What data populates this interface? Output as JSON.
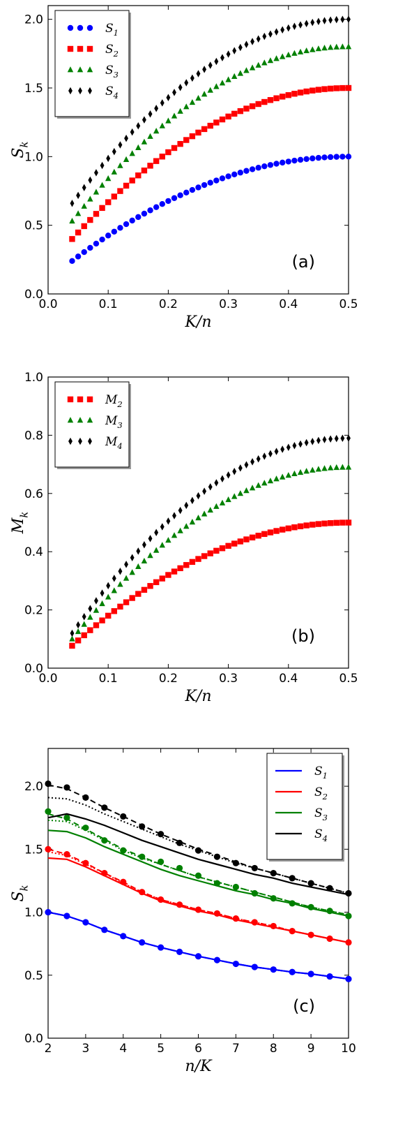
{
  "chart_data": [
    {
      "type": "scatter",
      "panel_label": "(a)",
      "xlabel": "K/n",
      "ylabel": "S_k",
      "ylabel_base": "S",
      "ylabel_sub": "k",
      "xlim": [
        0.0,
        0.5
      ],
      "ylim": [
        0.0,
        2.1
      ],
      "xticks": [
        "0.0",
        "0.1",
        "0.2",
        "0.3",
        "0.4",
        "0.5"
      ],
      "yticks": [
        "0.0",
        "0.5",
        "1.0",
        "1.5",
        "2.0"
      ],
      "legend": "top-left",
      "series": [
        {
          "name": "S_1",
          "name_base": "S",
          "name_sub": "1",
          "marker": "circle",
          "color": "#0000ff",
          "y_start": 0.24,
          "y_end": 1.0
        },
        {
          "name": "S_2",
          "name_base": "S",
          "name_sub": "2",
          "marker": "square",
          "color": "#ff0000",
          "y_start": 0.4,
          "y_end": 1.5
        },
        {
          "name": "S_3",
          "name_base": "S",
          "name_sub": "3",
          "marker": "triangle",
          "color": "#008000",
          "y_start": 0.53,
          "y_end": 1.8
        },
        {
          "name": "S_4",
          "name_base": "S",
          "name_sub": "4",
          "marker": "diamond",
          "color": "#000000",
          "y_start": 0.66,
          "y_end": 2.0
        }
      ],
      "x_start": 0.04,
      "x_end": 0.5,
      "n_points": 47
    },
    {
      "type": "scatter",
      "panel_label": "(b)",
      "xlabel": "K/n",
      "ylabel": "M_k",
      "ylabel_base": "M",
      "ylabel_sub": "k",
      "xlim": [
        0.0,
        0.5
      ],
      "ylim": [
        0.0,
        1.0
      ],
      "xticks": [
        "0.0",
        "0.1",
        "0.2",
        "0.3",
        "0.4",
        "0.5"
      ],
      "yticks": [
        "0.0",
        "0.2",
        "0.4",
        "0.6",
        "0.8",
        "1.0"
      ],
      "legend": "top-left",
      "series": [
        {
          "name": "M_2",
          "name_base": "M",
          "name_sub": "2",
          "marker": "square",
          "color": "#ff0000",
          "y_start": 0.077,
          "y_end": 0.5
        },
        {
          "name": "M_3",
          "name_base": "M",
          "name_sub": "3",
          "marker": "triangle",
          "color": "#008000",
          "y_start": 0.1,
          "y_end": 0.69
        },
        {
          "name": "M_4",
          "name_base": "M",
          "name_sub": "4",
          "marker": "diamond",
          "color": "#000000",
          "y_start": 0.12,
          "y_end": 0.79
        }
      ],
      "x_start": 0.04,
      "x_end": 0.5,
      "n_points": 47
    },
    {
      "type": "line",
      "panel_label": "(c)",
      "xlabel": "n/K",
      "ylabel": "S_k",
      "ylabel_base": "S",
      "ylabel_sub": "k",
      "xlim": [
        2,
        10
      ],
      "ylim": [
        0.0,
        2.3
      ],
      "xticks": [
        "2",
        "3",
        "4",
        "5",
        "6",
        "7",
        "8",
        "9",
        "10"
      ],
      "yticks": [
        "0.0",
        "0.5",
        "1.0",
        "1.5",
        "2.0"
      ],
      "legend": "top-right",
      "x_points": [
        2,
        2.5,
        3,
        3.5,
        4,
        4.5,
        5,
        5.5,
        6,
        6.5,
        7,
        7.5,
        8,
        8.5,
        9,
        9.5,
        10
      ],
      "series": [
        {
          "name": "S_1",
          "name_base": "S",
          "name_sub": "1",
          "color": "#0000ff",
          "points": [
            1.0,
            0.97,
            0.92,
            0.86,
            0.81,
            0.76,
            0.72,
            0.685,
            0.65,
            0.62,
            0.59,
            0.565,
            0.545,
            0.525,
            0.51,
            0.49,
            0.47
          ],
          "solid": [
            1.0,
            0.97,
            0.92,
            0.86,
            0.81,
            0.76,
            0.72,
            0.685,
            0.65,
            0.62,
            0.59,
            0.565,
            0.545,
            0.525,
            0.51,
            0.49,
            0.47
          ],
          "dashed": [
            1.0,
            0.97,
            0.92,
            0.86,
            0.81,
            0.76,
            0.72,
            0.685,
            0.65,
            0.62,
            0.59,
            0.565,
            0.545,
            0.525,
            0.51,
            0.49,
            0.47
          ],
          "dotted": [
            1.0,
            0.97,
            0.92,
            0.86,
            0.81,
            0.76,
            0.72,
            0.685,
            0.65,
            0.62,
            0.59,
            0.565,
            0.545,
            0.525,
            0.51,
            0.49,
            0.47
          ]
        },
        {
          "name": "S_2",
          "name_base": "S",
          "name_sub": "2",
          "color": "#ff0000",
          "points": [
            1.5,
            1.46,
            1.39,
            1.31,
            1.24,
            1.16,
            1.1,
            1.06,
            1.02,
            0.99,
            0.95,
            0.92,
            0.89,
            0.85,
            0.82,
            0.79,
            0.76
          ],
          "solid": [
            1.43,
            1.42,
            1.36,
            1.29,
            1.22,
            1.15,
            1.09,
            1.05,
            1.01,
            0.98,
            0.94,
            0.91,
            0.88,
            0.85,
            0.82,
            0.79,
            0.76
          ],
          "dashed": [
            1.5,
            1.46,
            1.39,
            1.31,
            1.24,
            1.16,
            1.1,
            1.06,
            1.02,
            0.99,
            0.95,
            0.92,
            0.89,
            0.85,
            0.82,
            0.79,
            0.76
          ],
          "dotted": [
            1.48,
            1.45,
            1.38,
            1.31,
            1.23,
            1.16,
            1.1,
            1.06,
            1.02,
            0.99,
            0.95,
            0.92,
            0.89,
            0.85,
            0.82,
            0.79,
            0.76
          ]
        },
        {
          "name": "S_3",
          "name_base": "S",
          "name_sub": "3",
          "color": "#008000",
          "points": [
            1.8,
            1.75,
            1.67,
            1.57,
            1.49,
            1.44,
            1.4,
            1.35,
            1.29,
            1.23,
            1.2,
            1.15,
            1.11,
            1.07,
            1.04,
            1.01,
            0.97
          ],
          "solid": [
            1.65,
            1.64,
            1.59,
            1.52,
            1.46,
            1.4,
            1.34,
            1.29,
            1.25,
            1.21,
            1.17,
            1.14,
            1.1,
            1.07,
            1.03,
            1.0,
            0.97
          ],
          "dashed": [
            1.78,
            1.74,
            1.66,
            1.58,
            1.5,
            1.44,
            1.38,
            1.33,
            1.28,
            1.24,
            1.2,
            1.16,
            1.12,
            1.08,
            1.04,
            1.01,
            0.98
          ],
          "dotted": [
            1.73,
            1.72,
            1.65,
            1.57,
            1.49,
            1.43,
            1.38,
            1.33,
            1.28,
            1.24,
            1.2,
            1.16,
            1.12,
            1.08,
            1.04,
            1.01,
            0.98
          ]
        },
        {
          "name": "S_4",
          "name_base": "S",
          "name_sub": "4",
          "color": "#000000",
          "points": [
            2.02,
            1.99,
            1.91,
            1.83,
            1.76,
            1.68,
            1.62,
            1.55,
            1.49,
            1.44,
            1.39,
            1.35,
            1.31,
            1.27,
            1.23,
            1.19,
            1.15
          ],
          "solid": [
            1.75,
            1.78,
            1.74,
            1.69,
            1.63,
            1.57,
            1.52,
            1.47,
            1.42,
            1.38,
            1.34,
            1.3,
            1.27,
            1.23,
            1.2,
            1.17,
            1.14
          ],
          "dashed": [
            2.01,
            1.98,
            1.91,
            1.83,
            1.76,
            1.69,
            1.62,
            1.56,
            1.5,
            1.45,
            1.4,
            1.35,
            1.31,
            1.27,
            1.23,
            1.19,
            1.15
          ],
          "dotted": [
            1.91,
            1.9,
            1.85,
            1.78,
            1.72,
            1.66,
            1.6,
            1.54,
            1.49,
            1.44,
            1.39,
            1.35,
            1.31,
            1.27,
            1.23,
            1.19,
            1.15
          ]
        }
      ]
    }
  ]
}
